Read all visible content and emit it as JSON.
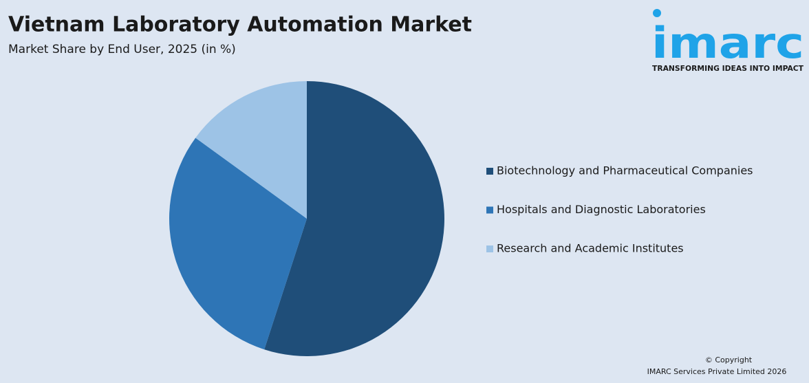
{
  "chart_data": {
    "type": "pie",
    "title": "Vietnam Laboratory Automation Market",
    "subtitle": "Market Share by End User, 2025 (in %)",
    "categories": [
      "Biotechnology and Pharmaceutical Companies",
      "Hospitals and Diagnostic Laboratories",
      "Research and Academic Institutes"
    ],
    "values": [
      55,
      30,
      15
    ],
    "colors": [
      "#1f4e79",
      "#2e75b6",
      "#9dc3e6"
    ]
  },
  "logo": {
    "name": "imarc",
    "tagline": "TRANSFORMING IDEAS INTO IMPACT"
  },
  "copyright": [
    "© Copyright",
    "IMARC Services Private Limited 2026"
  ]
}
